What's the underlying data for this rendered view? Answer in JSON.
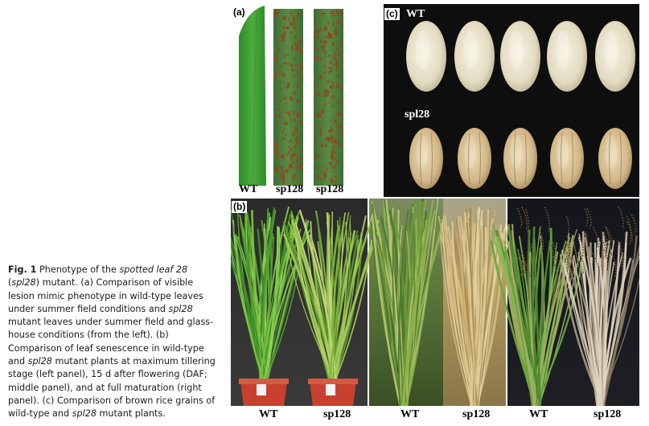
{
  "caption": {
    "fig_label": "Fig. 1",
    "t1": " Phenotype of the ",
    "em1": "spotted leaf 28",
    "t2": " (",
    "em2": "spl28",
    "t3": ") mutant. (a) Comparison of visible lesion mimic phenotype in wild-type leaves under summer field conditions and ",
    "em3": "spl28",
    "t4": " mutant leaves under summer field and glass-house conditions (from the left). (b) Comparison of leaf senescence in wild-type and ",
    "em4": "spl28",
    "t5": " mutant plants at maximum tillering stage (left panel), 15 d after flowering (DAF; middle panel), and at full maturation (right panel). (c) Comparison of brown rice grains of wild-type and ",
    "em5": "spl28",
    "t6": " mutant plants."
  },
  "panel_a": {
    "label": "(a)",
    "leaf_labels": [
      "WT",
      "sp128",
      "sp128"
    ],
    "colors": {
      "wt_leaf": "#3f9a35",
      "mutant_leaf": "#4d7a3a",
      "lesion": "#8a4a1e"
    }
  },
  "panel_b": {
    "label": "(b)",
    "bottom_labels": [
      "WT",
      "sp128",
      "WT",
      "sp128",
      "WT",
      "sp128"
    ]
  },
  "panel_c": {
    "label": "(c)",
    "row1_label": "WT",
    "row2_label": "spl28",
    "grain_counts": {
      "wt": 5,
      "mutant": 5
    },
    "colors": {
      "background": "#0e0e0e",
      "wt_grain": "#e3dcc2",
      "mutant_grain": "#d2b88a"
    }
  }
}
